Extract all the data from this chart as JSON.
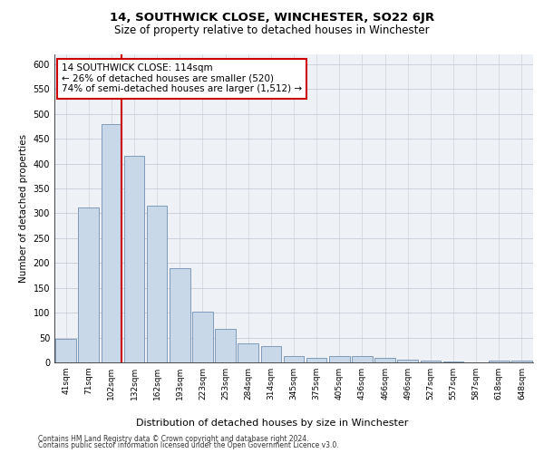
{
  "title": "14, SOUTHWICK CLOSE, WINCHESTER, SO22 6JR",
  "subtitle": "Size of property relative to detached houses in Winchester",
  "xlabel": "Distribution of detached houses by size in Winchester",
  "ylabel": "Number of detached properties",
  "footnote1": "Contains HM Land Registry data © Crown copyright and database right 2024.",
  "footnote2": "Contains public sector information licensed under the Open Government Licence v3.0.",
  "annotation_line1": "14 SOUTHWICK CLOSE: 114sqm",
  "annotation_line2": "← 26% of detached houses are smaller (520)",
  "annotation_line3": "74% of semi-detached houses are larger (1,512) →",
  "categories": [
    "41sqm",
    "71sqm",
    "102sqm",
    "132sqm",
    "162sqm",
    "193sqm",
    "223sqm",
    "253sqm",
    "284sqm",
    "314sqm",
    "345sqm",
    "375sqm",
    "405sqm",
    "436sqm",
    "466sqm",
    "496sqm",
    "527sqm",
    "557sqm",
    "587sqm",
    "618sqm",
    "648sqm"
  ],
  "values": [
    47,
    312,
    480,
    415,
    315,
    190,
    103,
    67,
    38,
    32,
    13,
    10,
    13,
    13,
    10,
    5,
    3,
    1,
    0,
    4,
    3
  ],
  "bar_color": "#c8d8e8",
  "bar_edge_color": "#7090b0",
  "vline_color": "#cc0000",
  "annotation_box_edge": "#cc0000",
  "annotation_box_face": "#ffffff",
  "grid_color": "#c8ccd8",
  "background_color": "#eef2f6",
  "ylim": [
    0,
    620
  ],
  "yticks": [
    0,
    50,
    100,
    150,
    200,
    250,
    300,
    350,
    400,
    450,
    500,
    550,
    600
  ],
  "vline_bin_index": 2
}
